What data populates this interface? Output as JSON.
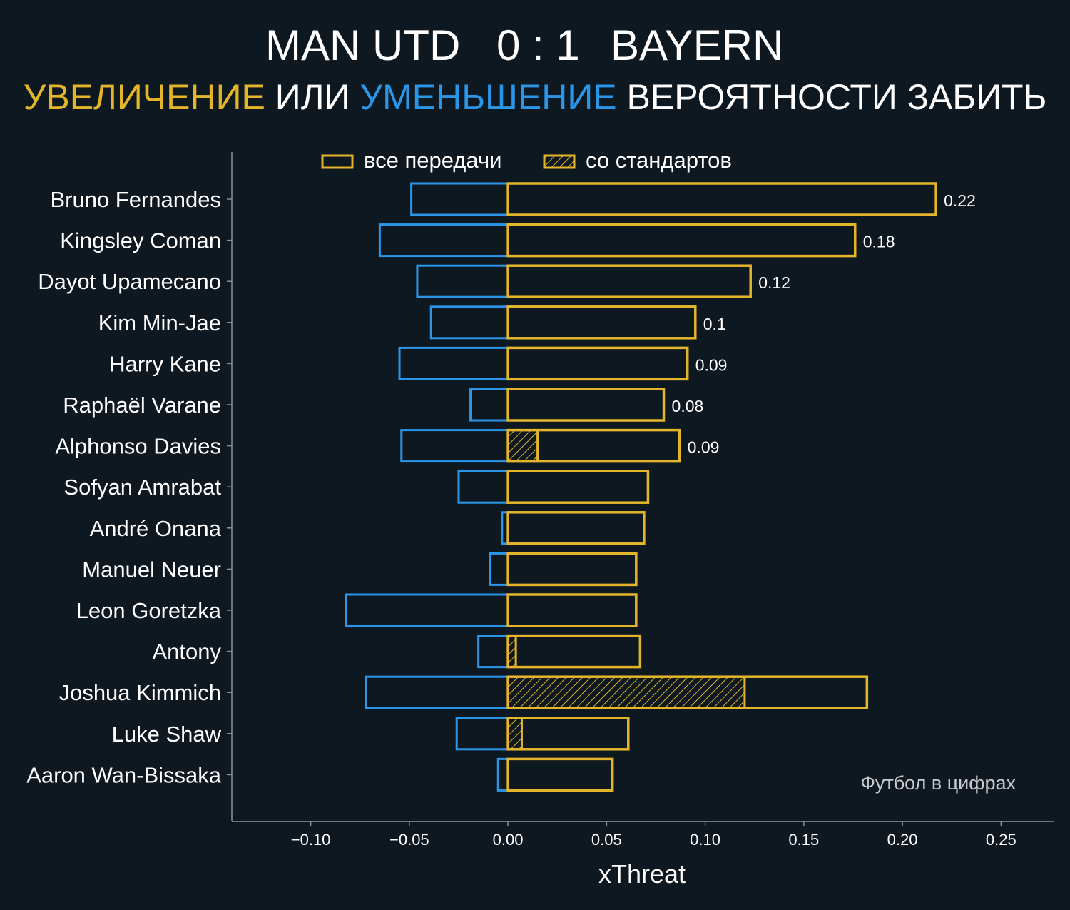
{
  "header": {
    "home_team": "MAN UTD",
    "score": "0 : 1",
    "away_team": "BAYERN",
    "subtitle": {
      "increase": "УВЕЛИЧЕНИЕ",
      "or": "ИЛИ",
      "decrease": "УМЕНЬШЕНИЕ",
      "rest": "ВЕРОЯТНОСТИ ЗАБИТЬ"
    }
  },
  "colors": {
    "background": "#0e1820",
    "increase": "#e4b52a",
    "decrease": "#2b96e8",
    "axis": "#8a9299",
    "text": "#ffffff",
    "watermark": "#c8ccd0"
  },
  "watermark": "Футбол в цифрах",
  "chart_data": {
    "type": "bar",
    "orientation": "horizontal",
    "xlabel": "xThreat",
    "xlim": [
      -0.14,
      0.277
    ],
    "xticks": [
      -0.1,
      -0.05,
      0.0,
      0.05,
      0.1,
      0.15,
      0.2,
      0.25
    ],
    "xtick_labels": [
      "−0.10",
      "−0.05",
      "0.00",
      "0.05",
      "0.10",
      "0.15",
      "0.20",
      "0.25"
    ],
    "legend": {
      "position": "top",
      "entries": [
        {
          "label": "все передачи",
          "style": "outline"
        },
        {
          "label": "со стандартов",
          "style": "hatched"
        }
      ]
    },
    "categories": [
      "Bruno Fernandes",
      "Kingsley Coman",
      "Dayot Upamecano",
      "Kim Min-Jae",
      "Harry Kane",
      "Raphaël Varane",
      "Alphonso Davies",
      "Sofyan Amrabat",
      "André Onana",
      "Manuel Neuer",
      "Leon Goretzka",
      "Antony",
      "Joshua Kimmich",
      "Luke Shaw",
      "Aaron Wan-Bissaka"
    ],
    "series": [
      {
        "name": "increase",
        "values": [
          0.217,
          0.176,
          0.123,
          0.095,
          0.091,
          0.079,
          0.087,
          0.071,
          0.069,
          0.065,
          0.065,
          0.067,
          0.182,
          0.061,
          0.053
        ]
      },
      {
        "name": "decrease",
        "values": [
          -0.049,
          -0.065,
          -0.046,
          -0.039,
          -0.055,
          -0.019,
          -0.054,
          -0.025,
          -0.003,
          -0.009,
          -0.082,
          -0.015,
          -0.072,
          -0.026,
          -0.005
        ]
      },
      {
        "name": "set pieces",
        "values": [
          0,
          0,
          0,
          0,
          0,
          0,
          0.015,
          0,
          0,
          0,
          0,
          0.004,
          0.12,
          0.007,
          0
        ]
      }
    ],
    "value_labels": [
      "0.22",
      "0.18",
      "0.12",
      "0.1",
      "0.09",
      "0.08",
      "0.09",
      "",
      "",
      "",
      "",
      "",
      "",
      "",
      ""
    ]
  }
}
